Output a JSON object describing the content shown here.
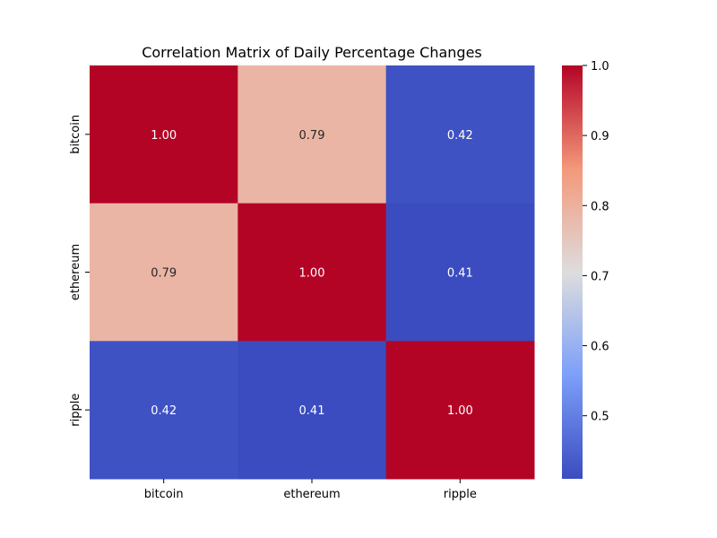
{
  "chart_data": {
    "type": "heatmap",
    "title": "Correlation Matrix of Daily Percentage Changes",
    "xlabel": "",
    "ylabel": "",
    "x_categories": [
      "bitcoin",
      "ethereum",
      "ripple"
    ],
    "y_categories": [
      "bitcoin",
      "ethereum",
      "ripple"
    ],
    "values": [
      [
        1.0,
        0.79,
        0.42
      ],
      [
        0.79,
        1.0,
        0.41
      ],
      [
        0.42,
        0.41,
        1.0
      ]
    ],
    "value_format": "2 decimals",
    "colormap": "coolwarm",
    "colorbar": {
      "min": 0.41,
      "max": 1.0,
      "ticks": [
        0.5,
        0.6,
        0.7,
        0.8,
        0.9,
        1.0
      ],
      "tick_labels": [
        "0.5",
        "0.6",
        "0.7",
        "0.8",
        "0.9",
        "1.0"
      ]
    },
    "colors": {
      "low": "#3b4cc0",
      "mid": "#dddddd",
      "high": "#b40426",
      "text_on_dark": "#ffffff",
      "text_on_light": "#262626"
    }
  }
}
